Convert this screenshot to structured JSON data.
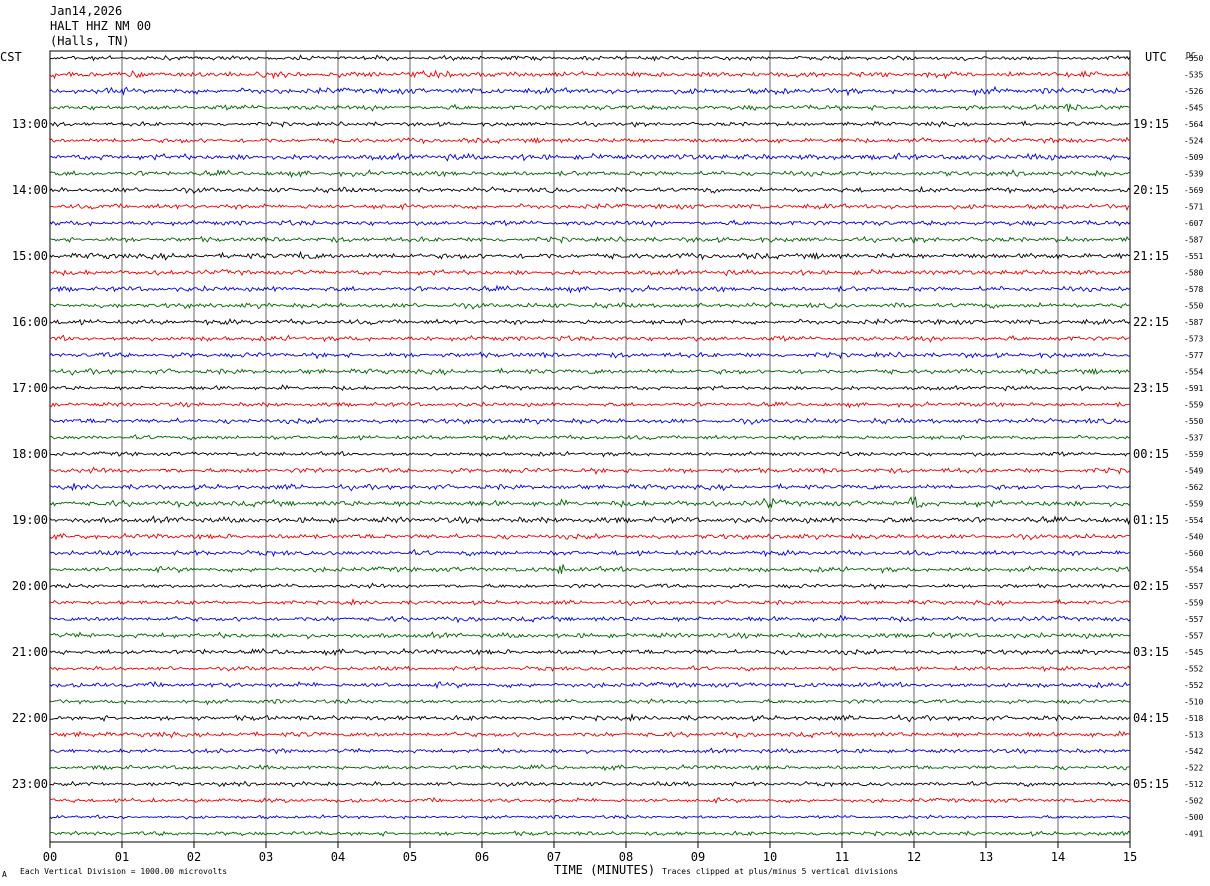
{
  "header": {
    "date": "Jan14,2026",
    "station": "HALT HHZ NM 00",
    "location": "(Halls, TN)"
  },
  "axes": {
    "left_label": "CST",
    "right_label": "UTC",
    "dc_label": "DC",
    "x_title": "TIME (MINUTES)"
  },
  "footer": {
    "left_mark": "A",
    "scale_note": "Each Vertical Division = 1000.00 microvolts",
    "clip_note": "Traces clipped at plus/minus 5 vertical divisions"
  },
  "colors": {
    "trace_cycle": [
      "#000000",
      "#ee0000",
      "#0000dd",
      "#006400"
    ],
    "grid": "#000000"
  },
  "chart_data": {
    "type": "line",
    "title": "Jan14,2026 HALT HHZ NM 00 (Halls, TN)",
    "xlabel": "TIME (MINUTES)",
    "xlim": [
      0,
      15
    ],
    "x_ticks": [
      "00",
      "01",
      "02",
      "03",
      "04",
      "05",
      "06",
      "07",
      "08",
      "09",
      "10",
      "11",
      "12",
      "13",
      "14",
      "15"
    ],
    "grid": "vertical",
    "trace_count": 48,
    "trace_minutes": 15,
    "left_hour_labels": [
      {
        "trace": 4,
        "text": "13:00"
      },
      {
        "trace": 8,
        "text": "14:00"
      },
      {
        "trace": 12,
        "text": "15:00"
      },
      {
        "trace": 16,
        "text": "16:00"
      },
      {
        "trace": 20,
        "text": "17:00"
      },
      {
        "trace": 24,
        "text": "18:00"
      },
      {
        "trace": 28,
        "text": "19:00"
      },
      {
        "trace": 32,
        "text": "20:00"
      },
      {
        "trace": 36,
        "text": "21:00"
      },
      {
        "trace": 40,
        "text": "22:00"
      },
      {
        "trace": 44,
        "text": "23:00"
      }
    ],
    "right_hour_labels": [
      {
        "trace": 4,
        "text": "19:15"
      },
      {
        "trace": 8,
        "text": "20:15"
      },
      {
        "trace": 12,
        "text": "21:15"
      },
      {
        "trace": 16,
        "text": "22:15"
      },
      {
        "trace": 20,
        "text": "23:15"
      },
      {
        "trace": 24,
        "text": "00:15"
      },
      {
        "trace": 28,
        "text": "01:15"
      },
      {
        "trace": 32,
        "text": "02:15"
      },
      {
        "trace": 36,
        "text": "03:15"
      },
      {
        "trace": 40,
        "text": "04:15"
      },
      {
        "trace": 44,
        "text": "05:15"
      }
    ],
    "dc_offsets": [
      -550,
      -535,
      -526,
      -545,
      -564,
      -524,
      -509,
      -539,
      -569,
      -571,
      -607,
      -587,
      -551,
      -580,
      -578,
      -550,
      -587,
      -573,
      -577,
      -554,
      -591,
      -559,
      -550,
      -537,
      -559,
      -549,
      -562,
      -559,
      -554,
      -540,
      -560,
      -554,
      -557,
      -559,
      -557,
      -557,
      -545,
      -552,
      -552,
      -510,
      -518,
      -513,
      -542,
      -522,
      -512,
      -502,
      -500,
      -491
    ],
    "trace_amplitude_divisions": [
      0.25,
      0.35,
      0.35,
      0.3,
      0.25,
      0.3,
      0.35,
      0.3,
      0.3,
      0.3,
      0.3,
      0.3,
      0.35,
      0.3,
      0.3,
      0.3,
      0.3,
      0.3,
      0.3,
      0.3,
      0.25,
      0.25,
      0.3,
      0.25,
      0.25,
      0.3,
      0.3,
      0.35,
      0.35,
      0.3,
      0.3,
      0.3,
      0.25,
      0.25,
      0.3,
      0.3,
      0.3,
      0.25,
      0.3,
      0.25,
      0.3,
      0.3,
      0.25,
      0.25,
      0.25,
      0.25,
      0.2,
      0.25
    ],
    "notable_events": [
      {
        "trace": 27,
        "minute": 12.0,
        "amplitude_divisions": 0.9
      },
      {
        "trace": 27,
        "minute": 10.0,
        "amplitude_divisions": 0.6
      },
      {
        "trace": 12,
        "minute": 3.5,
        "amplitude_divisions": 0.5
      },
      {
        "trace": 3,
        "minute": 14.2,
        "amplitude_divisions": 0.6
      },
      {
        "trace": 31,
        "minute": 7.1,
        "amplitude_divisions": 0.5
      }
    ]
  }
}
